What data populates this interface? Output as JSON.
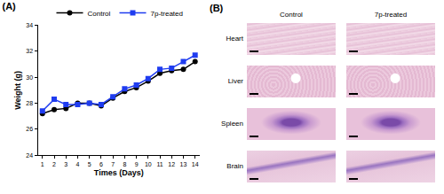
{
  "chart_data": {
    "type": "line",
    "title": "(A)",
    "x_label": "Times (Days)",
    "y_label": "Weight (g)",
    "x": [
      1,
      2,
      3,
      4,
      5,
      6,
      7,
      8,
      9,
      10,
      11,
      12,
      13,
      14
    ],
    "series": [
      {
        "name": "Control",
        "color": "#000000",
        "marker": "circle",
        "line_style": "solid",
        "values": [
          27.2,
          27.5,
          27.6,
          28.0,
          28.0,
          27.8,
          28.4,
          28.9,
          29.2,
          29.7,
          30.3,
          30.5,
          30.6,
          31.2
        ]
      },
      {
        "name": "7p-treated",
        "color": "#1f3cf0",
        "marker": "square",
        "line_style": "solid",
        "values": [
          27.4,
          28.3,
          27.9,
          27.9,
          28.0,
          27.9,
          28.5,
          29.1,
          29.4,
          29.9,
          30.6,
          30.7,
          31.2,
          31.7
        ]
      }
    ],
    "xlim": [
      0.6,
      14.4
    ],
    "xticks": [
      1,
      2,
      3,
      4,
      5,
      6,
      7,
      8,
      9,
      10,
      11,
      12,
      13,
      14
    ],
    "ylim": [
      24,
      34
    ],
    "yticks": [
      24,
      26,
      28,
      30,
      32,
      34
    ],
    "grid": false,
    "legend": "top"
  },
  "histology": {
    "label": "(B)",
    "columns": [
      "Control",
      "7p-treated"
    ],
    "rows": [
      "Heart",
      "Liver",
      "Spleen",
      "Brain"
    ]
  }
}
